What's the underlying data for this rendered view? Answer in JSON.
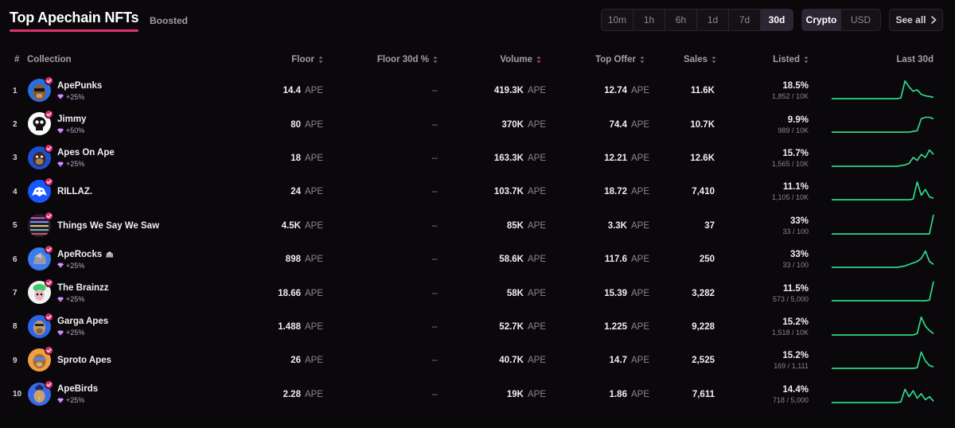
{
  "header": {
    "title": "Top Apechain NFTs",
    "boosted_tab": "Boosted",
    "time_filters": [
      "10m",
      "1h",
      "6h",
      "1d",
      "7d",
      "30d"
    ],
    "active_time_filter": "30d",
    "currency_options": [
      "Crypto",
      "USD"
    ],
    "active_currency": "Crypto",
    "see_all": "See all"
  },
  "columns": {
    "rank": "#",
    "collection": "Collection",
    "floor": "Floor",
    "floor_30d": "Floor 30d %",
    "volume": "Volume",
    "top_offer": "Top Offer",
    "sales": "Sales",
    "listed": "Listed",
    "last_30d": "Last 30d"
  },
  "colors": {
    "accent": "#e0316e",
    "spark": "#2ee58e",
    "background": "#0b080c"
  },
  "rows": [
    {
      "rank": "1",
      "name": "ApePunks",
      "boost": "+25%",
      "floor": "14.4",
      "unit": "APE",
      "floor_30d": "--",
      "volume": "419.3K",
      "top_offer": "12.74",
      "sales": "11.6K",
      "listed_pct": "18.5%",
      "listed_frac": "1,852 / 10K",
      "avatar": "ape-punk-icon",
      "spark": [
        2,
        2,
        2,
        2,
        2,
        2,
        2,
        2,
        2,
        2,
        2,
        2,
        2,
        2,
        2,
        2,
        2,
        3,
        26,
        18,
        12,
        14,
        8,
        6,
        5,
        4
      ]
    },
    {
      "rank": "2",
      "name": "Jimmy",
      "boost": "+50%",
      "floor": "80",
      "unit": "APE",
      "floor_30d": "--",
      "volume": "370K",
      "top_offer": "74.4",
      "sales": "10.7K",
      "listed_pct": "9.9%",
      "listed_frac": "989 / 10K",
      "avatar": "jimmy-skull-icon",
      "spark": [
        2,
        2,
        2,
        2,
        2,
        2,
        2,
        2,
        2,
        2,
        2,
        2,
        2,
        2,
        2,
        2,
        2,
        2,
        2,
        2,
        3,
        4,
        20,
        22,
        22,
        20
      ]
    },
    {
      "rank": "3",
      "name": "Apes On Ape",
      "boost": "+25%",
      "floor": "18",
      "unit": "APE",
      "floor_30d": "--",
      "volume": "163.3K",
      "top_offer": "12.21",
      "sales": "12.6K",
      "listed_pct": "15.7%",
      "listed_frac": "1,565 / 10K",
      "avatar": "apes-on-ape-icon",
      "spark": [
        2,
        2,
        2,
        2,
        2,
        2,
        2,
        2,
        2,
        2,
        2,
        2,
        2,
        2,
        2,
        2,
        2,
        3,
        4,
        6,
        14,
        10,
        18,
        14,
        24,
        18
      ]
    },
    {
      "rank": "4",
      "name": "RILLAZ.",
      "boost": "",
      "floor": "24",
      "unit": "APE",
      "floor_30d": "--",
      "volume": "103.7K",
      "top_offer": "18.72",
      "sales": "7,410",
      "listed_pct": "11.1%",
      "listed_frac": "1,105 / 10K",
      "avatar": "rillaz-icon",
      "spark": [
        2,
        2,
        2,
        2,
        2,
        2,
        2,
        2,
        2,
        2,
        2,
        2,
        2,
        2,
        2,
        2,
        2,
        2,
        2,
        2,
        3,
        26,
        8,
        16,
        6,
        4
      ]
    },
    {
      "rank": "5",
      "name": "Things We Say We Saw",
      "boost": "",
      "floor": "4.5K",
      "unit": "APE",
      "floor_30d": "--",
      "volume": "85K",
      "top_offer": "3.3K",
      "sales": "37",
      "listed_pct": "33%",
      "listed_frac": "33 / 100",
      "avatar": "things-we-say-icon",
      "spark": [
        2,
        2,
        2,
        2,
        2,
        2,
        2,
        2,
        2,
        2,
        2,
        2,
        2,
        2,
        2,
        2,
        2,
        2,
        2,
        2,
        2,
        2,
        2,
        2,
        2,
        28
      ]
    },
    {
      "rank": "6",
      "name": "ApeRocks",
      "boost": "+25%",
      "floor": "898",
      "unit": "APE",
      "floor_30d": "--",
      "volume": "58.6K",
      "top_offer": "117.6",
      "sales": "250",
      "listed_pct": "33%",
      "listed_frac": "33 / 100",
      "avatar": "ape-rock-icon",
      "spark": [
        2,
        2,
        2,
        2,
        2,
        2,
        2,
        2,
        2,
        2,
        2,
        2,
        2,
        2,
        2,
        2,
        2,
        3,
        4,
        6,
        8,
        10,
        14,
        24,
        10,
        6
      ]
    },
    {
      "rank": "7",
      "name": "The Brainzz",
      "boost": "+25%",
      "floor": "18.66",
      "unit": "APE",
      "floor_30d": "--",
      "volume": "58K",
      "top_offer": "15.39",
      "sales": "3,282",
      "listed_pct": "11.5%",
      "listed_frac": "573 / 5,000",
      "avatar": "brainzz-icon",
      "spark": [
        2,
        2,
        2,
        2,
        2,
        2,
        2,
        2,
        2,
        2,
        2,
        2,
        2,
        2,
        2,
        2,
        2,
        2,
        2,
        2,
        2,
        2,
        2,
        2,
        3,
        28
      ]
    },
    {
      "rank": "8",
      "name": "Garga Apes",
      "boost": "+25%",
      "floor": "1.488",
      "unit": "APE",
      "floor_30d": "--",
      "volume": "52.7K",
      "top_offer": "1.225",
      "sales": "9,228",
      "listed_pct": "15.2%",
      "listed_frac": "1,518 / 10K",
      "avatar": "garga-ape-icon",
      "spark": [
        2,
        2,
        2,
        2,
        2,
        2,
        2,
        2,
        2,
        2,
        2,
        2,
        2,
        2,
        2,
        2,
        2,
        2,
        2,
        2,
        2,
        4,
        26,
        14,
        8,
        4
      ]
    },
    {
      "rank": "9",
      "name": "Sproto Apes",
      "boost": "",
      "floor": "26",
      "unit": "APE",
      "floor_30d": "--",
      "volume": "40.7K",
      "top_offer": "14.7",
      "sales": "2,525",
      "listed_pct": "15.2%",
      "listed_frac": "169 / 1,111",
      "avatar": "sproto-ape-icon",
      "spark": [
        2,
        2,
        2,
        2,
        2,
        2,
        2,
        2,
        2,
        2,
        2,
        2,
        2,
        2,
        2,
        2,
        2,
        2,
        2,
        2,
        2,
        3,
        24,
        12,
        6,
        4
      ]
    },
    {
      "rank": "10",
      "name": "ApeBirds",
      "boost": "+25%",
      "floor": "2.28",
      "unit": "APE",
      "floor_30d": "--",
      "volume": "19K",
      "top_offer": "1.86",
      "sales": "7,611",
      "listed_pct": "14.4%",
      "listed_frac": "718 / 5,000",
      "avatar": "ape-bird-icon",
      "spark": [
        2,
        2,
        2,
        2,
        2,
        2,
        2,
        2,
        2,
        2,
        2,
        2,
        2,
        2,
        2,
        2,
        2,
        3,
        20,
        10,
        18,
        8,
        14,
        6,
        10,
        4
      ]
    }
  ]
}
